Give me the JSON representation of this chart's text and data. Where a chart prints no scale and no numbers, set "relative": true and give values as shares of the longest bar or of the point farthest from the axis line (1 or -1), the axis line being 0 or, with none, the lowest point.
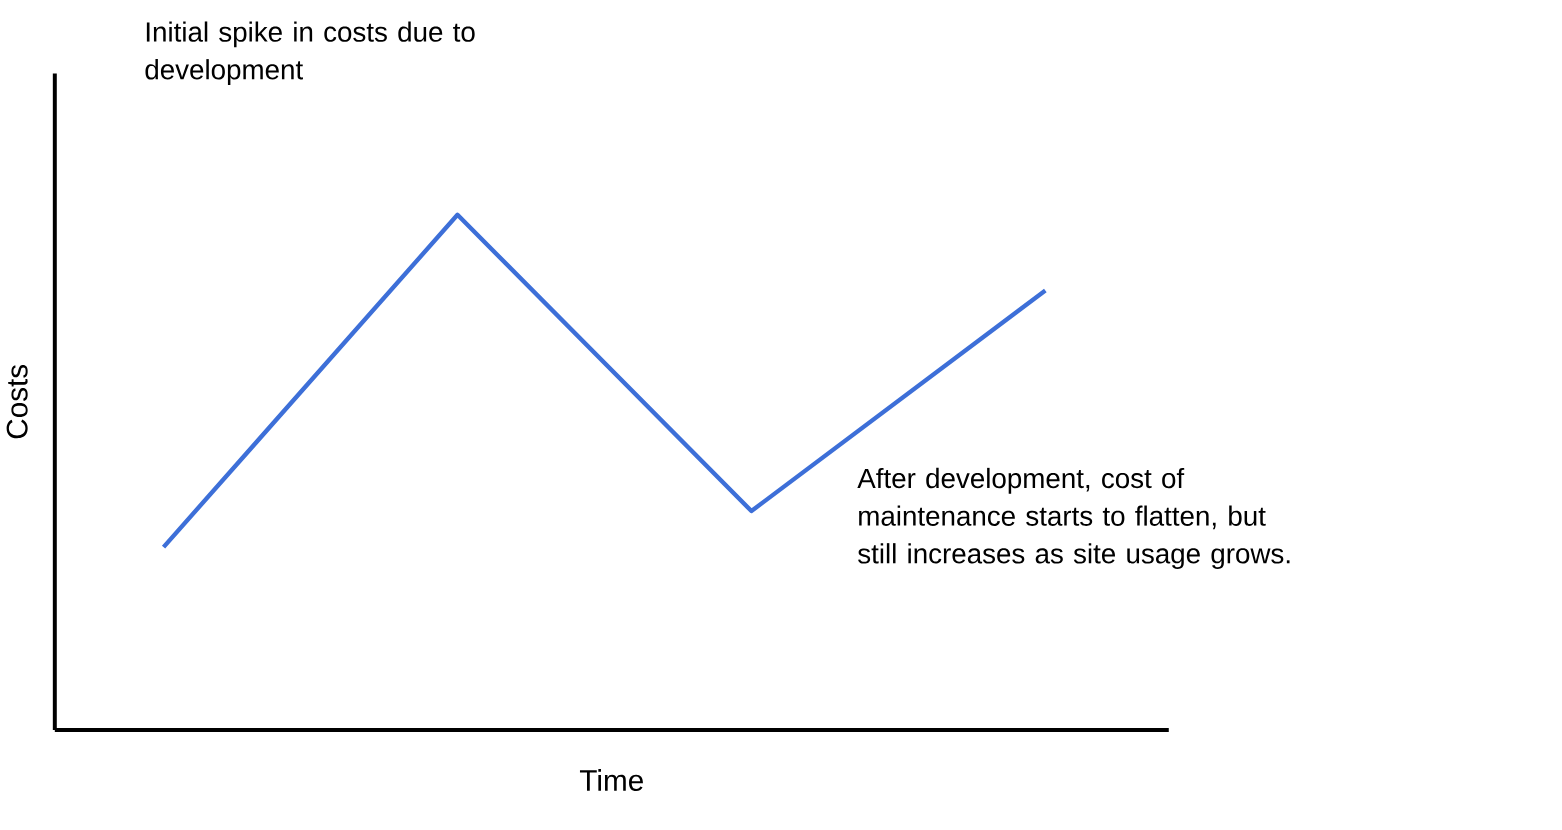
{
  "chart_data": {
    "type": "line",
    "relative": true,
    "xlabel": "Time",
    "ylabel": "Costs",
    "categories": [
      null,
      null,
      null,
      null
    ],
    "series": [
      {
        "color": "#3d6fd8",
        "values": [
          0.355,
          1,
          0.425,
          0.853
        ]
      }
    ],
    "annotations": [
      "Initial spike in costs due to development",
      "After development, cost of maintenance starts to flatten, but still increases as site usage grows."
    ],
    "marker": "none",
    "line_style": "solid"
  }
}
